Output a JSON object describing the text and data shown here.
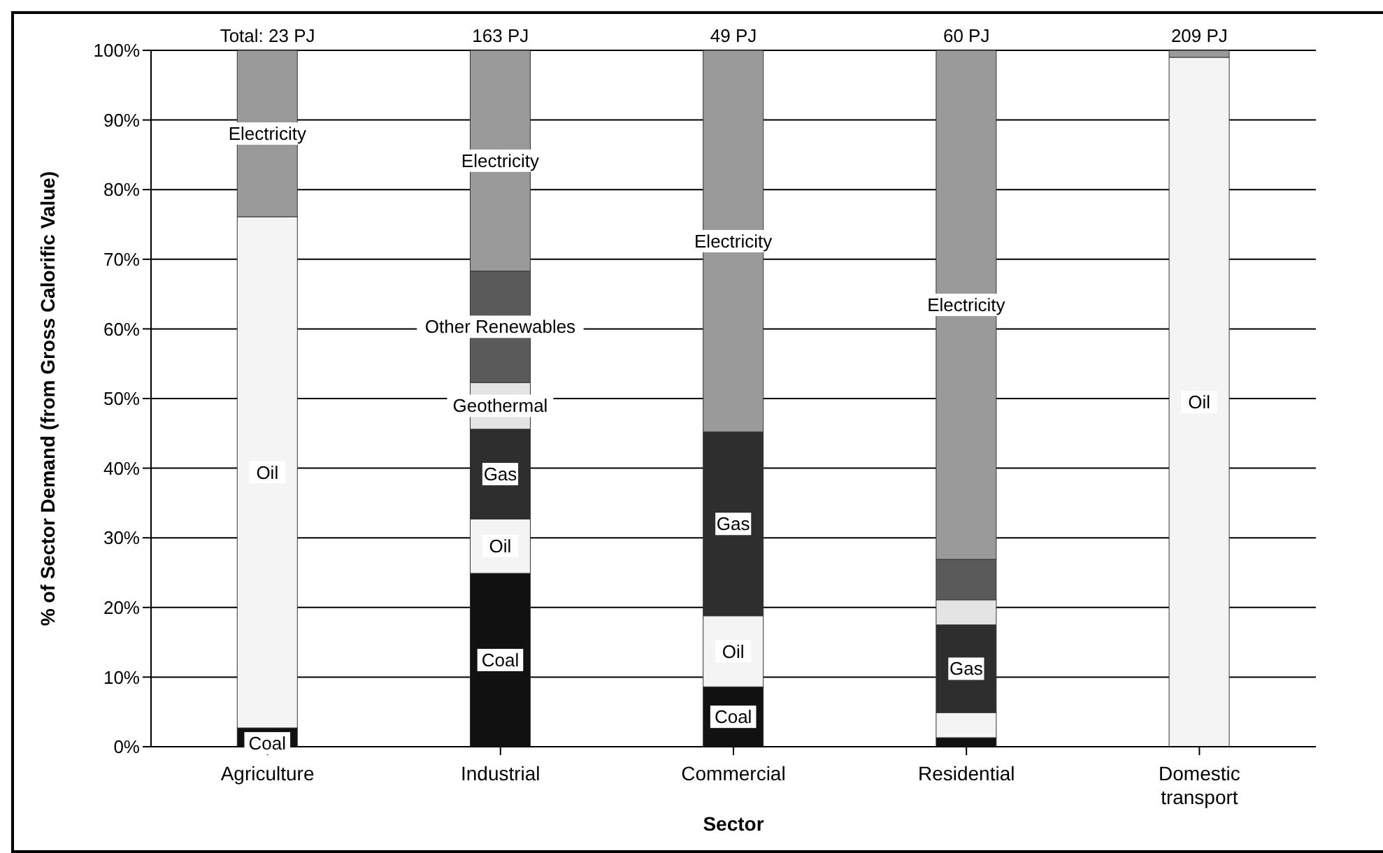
{
  "chart_data": {
    "type": "bar",
    "stacked": true,
    "xlabel": "Sector",
    "ylabel": "% of Sector Demand (from Gross Calorific Value)",
    "categories": [
      "Agriculture",
      "Industrial",
      "Commercial",
      "Residential",
      "Domestic transport"
    ],
    "series": [
      {
        "color": "#111111",
        "values": [
          2.7,
          24.9,
          8.6,
          1.3,
          0
        ],
        "value_labels": [
          "Coal",
          "Coal",
          "Coal",
          null,
          null
        ]
      },
      {
        "color": "#f4f4f4",
        "values": [
          73.4,
          7.8,
          10.2,
          3.6,
          99.0
        ],
        "value_labels": [
          "Oil",
          "Oil",
          "Oil",
          null,
          "Oil"
        ]
      },
      {
        "color": "#2e2e2e",
        "values": [
          0,
          12.9,
          26.4,
          12.6,
          0
        ],
        "value_labels": [
          null,
          "Gas",
          "Gas",
          "Gas",
          null
        ]
      },
      {
        "color": "#e4e4e4",
        "values": [
          0,
          6.7,
          0,
          3.6,
          0
        ],
        "value_labels": [
          null,
          "Geothermal",
          null,
          null,
          null
        ]
      },
      {
        "color": "#5a5a5a",
        "values": [
          0,
          16.0,
          0,
          5.8,
          0
        ],
        "value_labels": [
          null,
          "Other Renewables",
          null,
          null,
          null
        ]
      },
      {
        "color": "#9a9a9a",
        "values": [
          23.9,
          31.7,
          54.8,
          73.1,
          1.0
        ],
        "value_labels": [
          "Electricity",
          "Electricity",
          "Electricity",
          "Electricity",
          null
        ]
      }
    ],
    "annotations": [
      {
        "text": "Total:  23 PJ",
        "x": "Agriculture",
        "y": 100
      },
      {
        "text": "163 PJ",
        "x": "Industrial",
        "y": 100
      },
      {
        "text": "49 PJ",
        "x": "Commercial",
        "y": 100
      },
      {
        "text": "60 PJ",
        "x": "Residential",
        "y": 100
      },
      {
        "text": "209 PJ",
        "x": "Domestic transport",
        "y": 100
      }
    ],
    "ylim": [
      0,
      100
    ],
    "yticks": [
      {
        "value": 0,
        "label": "0%"
      },
      {
        "value": 10,
        "label": "10%"
      },
      {
        "value": 20,
        "label": "20%"
      },
      {
        "value": 30,
        "label": "30%"
      },
      {
        "value": 40,
        "label": "40%"
      },
      {
        "value": 50,
        "label": "50%"
      },
      {
        "value": 60,
        "label": "60%"
      },
      {
        "value": 70,
        "label": "70%"
      },
      {
        "value": 80,
        "label": "80%"
      },
      {
        "value": 90,
        "label": "90%"
      },
      {
        "value": 100,
        "label": "100%"
      }
    ],
    "grid": "y",
    "legend": false
  }
}
